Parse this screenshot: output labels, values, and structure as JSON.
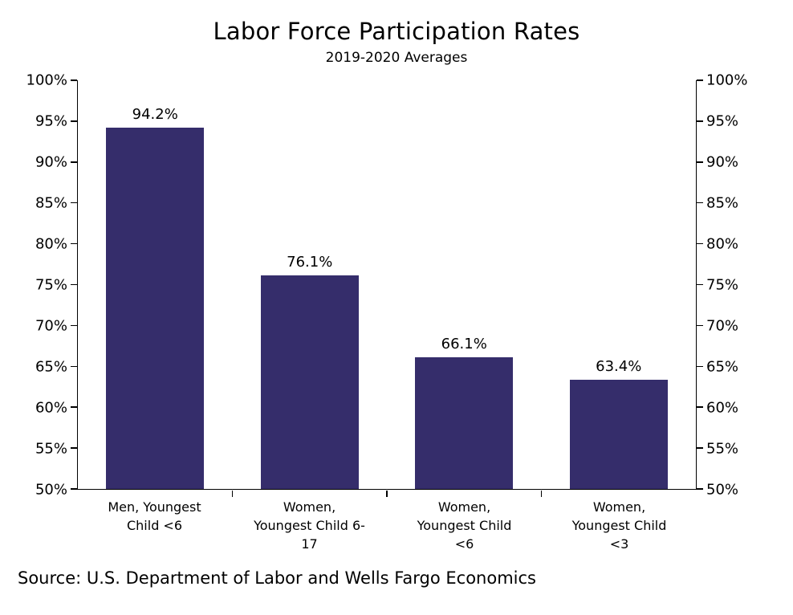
{
  "chart_data": {
    "type": "bar",
    "title": "Labor Force Participation Rates",
    "subtitle": "2019-2020 Averages",
    "categories": [
      "Men, Youngest\nChild <6",
      "Women,\nYoungest Child 6-\n17",
      "Women,\nYoungest Child\n<6",
      "Women,\nYoungest Child\n<3"
    ],
    "values": [
      94.2,
      76.1,
      66.1,
      63.4
    ],
    "value_labels": [
      "94.2%",
      "76.1%",
      "66.1%",
      "63.4%"
    ],
    "ylim": [
      50,
      100
    ],
    "yticks": [
      50,
      55,
      60,
      65,
      70,
      75,
      80,
      85,
      90,
      95,
      100
    ],
    "ytick_labels": [
      "50%",
      "55%",
      "60%",
      "65%",
      "70%",
      "75%",
      "80%",
      "85%",
      "90%",
      "95%",
      "100%"
    ],
    "bar_color": "#352d6b",
    "grid": false,
    "legend": "none",
    "dual_y_axis": true,
    "bar_width_pct": 15.8
  },
  "source": "Source: U.S. Department of Labor and Wells Fargo Economics"
}
